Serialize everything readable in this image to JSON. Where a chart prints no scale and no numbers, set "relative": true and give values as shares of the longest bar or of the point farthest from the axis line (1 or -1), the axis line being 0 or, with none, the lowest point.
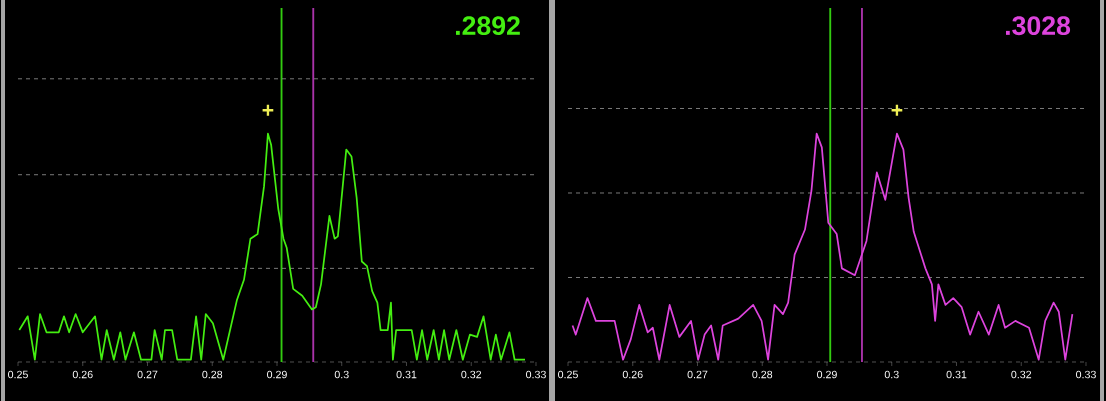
{
  "chart_data": [
    {
      "type": "line",
      "relative": true,
      "xlim": [
        0.25,
        0.33
      ],
      "xticks": [
        0.25,
        0.26,
        0.27,
        0.28,
        0.29,
        0.3,
        0.31,
        0.32,
        0.33
      ],
      "tick_labels": "x",
      "series": [
        {
          "color": "#44ee11",
          "x": [
            0.2502,
            0.2515,
            0.2526,
            0.2534,
            0.2544,
            0.2563,
            0.2571,
            0.2579,
            0.2589,
            0.26,
            0.2619,
            0.2629,
            0.2637,
            0.2648,
            0.2658,
            0.2666,
            0.2679,
            0.269,
            0.2706,
            0.2711,
            0.2722,
            0.2727,
            0.2738,
            0.2746,
            0.2767,
            0.2775,
            0.2783,
            0.279,
            0.2801,
            0.2817,
            0.2838,
            0.2849,
            0.2859,
            0.287,
            0.288,
            0.2886,
            0.2891,
            0.2902,
            0.291,
            0.2915,
            0.2925,
            0.2939,
            0.2954,
            0.296,
            0.2968,
            0.2981,
            0.2989,
            0.2994,
            0.3007,
            0.3015,
            0.3023,
            0.3031,
            0.3039,
            0.3047,
            0.3055,
            0.306,
            0.3071,
            0.3076,
            0.3079,
            0.3084,
            0.3108,
            0.3116,
            0.3124,
            0.3132,
            0.3142,
            0.315,
            0.3158,
            0.3166,
            0.3177,
            0.3187,
            0.3198,
            0.3209,
            0.3219,
            0.323,
            0.3238,
            0.3246,
            0.3259,
            0.3267,
            0.3283
          ],
          "values": [
            0.14,
            0.2,
            0.01,
            0.21,
            0.13,
            0.13,
            0.2,
            0.13,
            0.21,
            0.13,
            0.2,
            0.01,
            0.14,
            0.01,
            0.13,
            0.01,
            0.13,
            0.01,
            0.01,
            0.14,
            0.01,
            0.14,
            0.14,
            0.01,
            0.01,
            0.2,
            0.01,
            0.21,
            0.17,
            0.01,
            0.27,
            0.36,
            0.54,
            0.56,
            0.77,
            1,
            0.95,
            0.67,
            0.54,
            0.5,
            0.32,
            0.29,
            0.23,
            0.24,
            0.34,
            0.64,
            0.54,
            0.55,
            0.93,
            0.9,
            0.72,
            0.44,
            0.42,
            0.31,
            0.26,
            0.14,
            0.14,
            0.26,
            0.01,
            0.14,
            0.14,
            0.01,
            0.14,
            0.01,
            0.14,
            0.01,
            0.14,
            0.01,
            0.14,
            0.01,
            0.12,
            0.11,
            0.2,
            0.01,
            0.12,
            0.01,
            0.13,
            0.01,
            0.01
          ]
        }
      ],
      "ref_lines": [
        {
          "axis": "x",
          "value": 0.2907,
          "color": "#33cc11"
        },
        {
          "axis": "x",
          "value": 0.2956,
          "color": "#aa33aa"
        },
        {
          "axis": "y",
          "value": 0.41,
          "color": "#999999",
          "line_style": "dashed"
        },
        {
          "axis": "y",
          "value": 0.82,
          "color": "#999999",
          "line_style": "dashed"
        },
        {
          "axis": "y",
          "value": 1.24,
          "color": "#999999",
          "line_style": "dashed"
        }
      ],
      "annotations": [
        ".2892",
        {
          "text": "+",
          "x": 0.2886,
          "y": 1
        }
      ]
    },
    {
      "type": "line",
      "relative": true,
      "xlim": [
        0.25,
        0.33
      ],
      "xticks": [
        0.25,
        0.26,
        0.27,
        0.28,
        0.29,
        0.3,
        0.31,
        0.32,
        0.33
      ],
      "tick_labels": "x",
      "series": [
        {
          "color": "#dd44dd",
          "x": [
            0.2507,
            0.2512,
            0.253,
            0.2543,
            0.2572,
            0.2585,
            0.2597,
            0.261,
            0.2623,
            0.2631,
            0.2641,
            0.2657,
            0.2672,
            0.269,
            0.2701,
            0.2711,
            0.2721,
            0.2732,
            0.2739,
            0.2763,
            0.2786,
            0.2799,
            0.2809,
            0.2819,
            0.2832,
            0.284,
            0.285,
            0.2866,
            0.2876,
            0.2884,
            0.2892,
            0.2902,
            0.2915,
            0.2923,
            0.2943,
            0.2961,
            0.2977,
            0.299,
            0.3008,
            0.3018,
            0.3026,
            0.3034,
            0.3052,
            0.3062,
            0.3067,
            0.3072,
            0.3083,
            0.3095,
            0.3108,
            0.3121,
            0.3134,
            0.315,
            0.3165,
            0.3175,
            0.3191,
            0.3212,
            0.3227,
            0.3237,
            0.325,
            0.3258,
            0.3268,
            0.3279
          ],
          "values": [
            0.16,
            0.12,
            0.28,
            0.18,
            0.18,
            0.01,
            0.1,
            0.25,
            0.13,
            0.15,
            0.01,
            0.25,
            0.11,
            0.18,
            0.01,
            0.12,
            0.16,
            0.01,
            0.16,
            0.19,
            0.25,
            0.18,
            0.01,
            0.25,
            0.21,
            0.26,
            0.47,
            0.58,
            0.75,
            1,
            0.94,
            0.61,
            0.56,
            0.41,
            0.38,
            0.53,
            0.83,
            0.71,
            1,
            0.93,
            0.72,
            0.57,
            0.41,
            0.34,
            0.18,
            0.34,
            0.25,
            0.28,
            0.24,
            0.12,
            0.22,
            0.12,
            0.25,
            0.15,
            0.18,
            0.15,
            0.01,
            0.18,
            0.26,
            0.22,
            0.01,
            0.21
          ]
        }
      ],
      "ref_lines": [
        {
          "axis": "x",
          "value": 0.2905,
          "color": "#33cc11"
        },
        {
          "axis": "x",
          "value": 0.2954,
          "color": "#aa33aa"
        },
        {
          "axis": "y",
          "value": 0.37,
          "color": "#999999",
          "line_style": "dashed"
        },
        {
          "axis": "y",
          "value": 0.74,
          "color": "#999999",
          "line_style": "dashed"
        },
        {
          "axis": "y",
          "value": 1.11,
          "color": "#999999",
          "line_style": "dashed"
        }
      ],
      "annotations": [
        ".3028",
        {
          "text": "+",
          "x": 0.3008,
          "y": 1
        }
      ]
    }
  ]
}
